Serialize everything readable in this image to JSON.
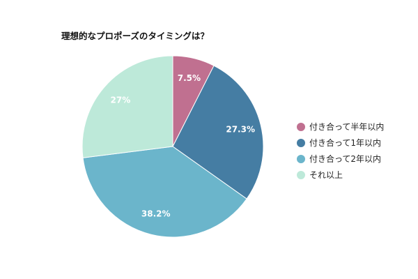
{
  "chart_data": {
    "type": "pie",
    "title": "理想的なプロポーズのタイミングは？",
    "categories": [
      "付き合って半年以内",
      "付き合って1年以内",
      "付き合って2年以内",
      "それ以上"
    ],
    "values": [
      7.5,
      27.3,
      38.2,
      27
    ],
    "value_labels": [
      "7.5%",
      "27.3%",
      "38.2%",
      "27%"
    ],
    "colors": [
      "#c07090",
      "#457da3",
      "#6bb5cb",
      "#bde9d9"
    ],
    "start_angle": "12 o'clock",
    "direction": "clockwise",
    "legend_placement": "right"
  }
}
